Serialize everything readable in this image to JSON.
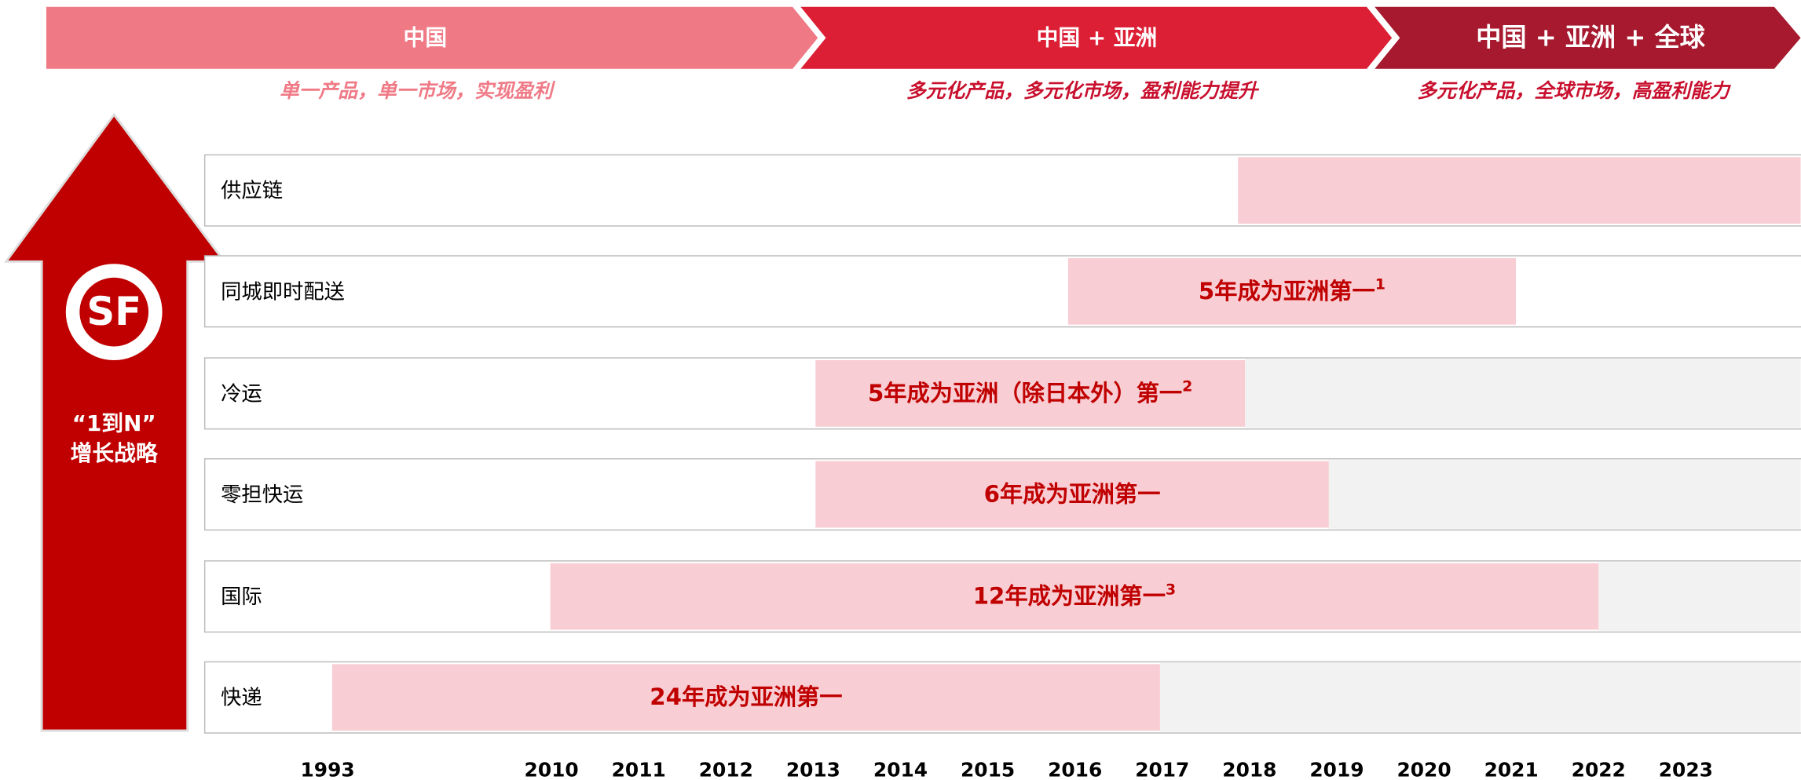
{
  "phases": [
    {
      "title": "中国",
      "subtitle": "单一产品，单一市场，实现盈利"
    },
    {
      "title": "中国 + 亚洲",
      "subtitle": "多元化产品，多元化市场，盈利能力提升"
    },
    {
      "title": "中国 + 亚洲 + 全球",
      "subtitle": "多元化产品，全球市场，高盈利能力"
    }
  ],
  "arrow": {
    "logo": "SF",
    "line1": "“1到N”",
    "line2": "增长战略"
  },
  "rows": [
    {
      "label": "供应链"
    },
    {
      "label": "同城即时配送",
      "bar": "5年成为亚洲第一",
      "note": "1"
    },
    {
      "label": "冷运",
      "bar": "5年成为亚洲（除日本外）第一",
      "note": "2"
    },
    {
      "label": "零担快运",
      "bar": "6年成为亚洲第一"
    },
    {
      "label": "国际",
      "bar": "12年成为亚洲第一",
      "note": "3"
    },
    {
      "label": "快递",
      "bar": "24年成为亚洲第一"
    }
  ],
  "years": [
    "1993",
    "2010",
    "2011",
    "2012",
    "2013",
    "2014",
    "2015",
    "2016",
    "2017",
    "2018",
    "2019",
    "2020",
    "2021",
    "2022",
    "2023"
  ]
}
